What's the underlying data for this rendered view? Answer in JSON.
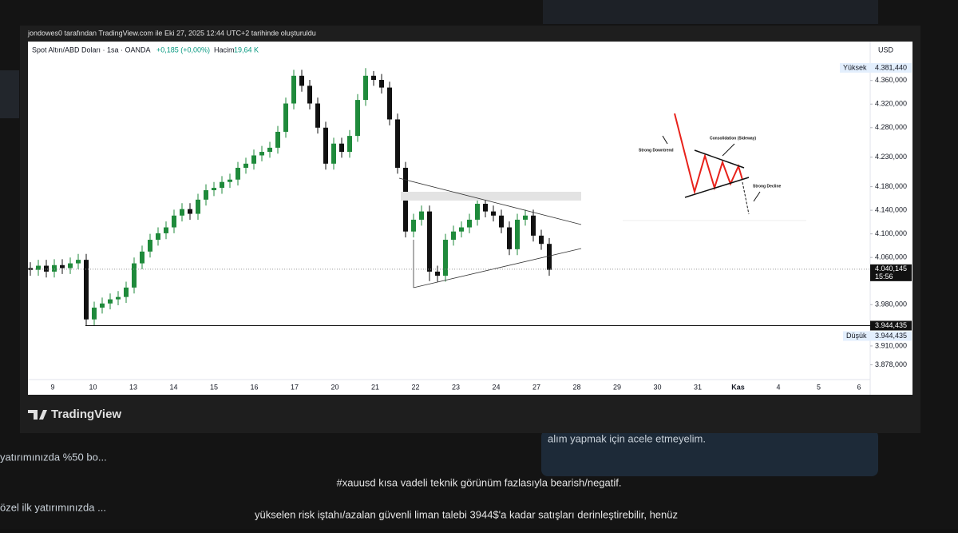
{
  "screenshot": {
    "header": "jondowes0 tarafından TradingView.com ile Eki 27, 2025 12:44 UTC+2 tarihinde oluşturuldu",
    "logo": "TradingView",
    "symbol": "Spot Altın/ABD Doları · 1sa · OANDA",
    "change": "+0,185 (+0,00%)",
    "volume_label": "Hacim",
    "volume": "19,64 K",
    "currency": "USD",
    "high_label": "Yüksek",
    "low_label": "Düşük",
    "countdown": "15:56",
    "annotations": [
      "Strong Downtrend",
      "Consolidation (Sideway)",
      "Strong Decline"
    ],
    "chat": {
      "message_1": "#xauusd kısa vadeli teknik görünüm fazlasıyla bearish/negatif.",
      "message_2": "yükselen risk iştahı/azalan güvenli liman talebi 3944$'a kadar satışları derinleştirebilir, henüz",
      "bubble": "alım yapmak için acele etmeyelim.",
      "side_1": "yatırımınızda %50 bo...",
      "side_2": "özel ilk yatırımınızda ..."
    }
  },
  "chart_data": {
    "type": "candlestick",
    "categories": [
      "9",
      "10",
      "13",
      "14",
      "15",
      "16",
      "17",
      "20",
      "21",
      "22",
      "23",
      "24",
      "27",
      "28",
      "29",
      "30",
      "31",
      "Kas",
      "4",
      "5",
      "6"
    ],
    "ylim": [
      3853,
      4426
    ],
    "yticks": [
      {
        "value": 4360,
        "label": "4.360,000"
      },
      {
        "value": 4320,
        "label": "4.320,000"
      },
      {
        "value": 4280,
        "label": "4.280,000"
      },
      {
        "value": 4230,
        "label": "4.230,000"
      },
      {
        "value": 4180,
        "label": "4.180,000"
      },
      {
        "value": 4140,
        "label": "4.140,000"
      },
      {
        "value": 4100,
        "label": "4.100,000"
      },
      {
        "value": 4060,
        "label": "4.060,000"
      },
      {
        "value": 3980,
        "label": "3.980,000"
      },
      {
        "value": 3910,
        "label": "3.910,000"
      },
      {
        "value": 3878,
        "label": "3.878,000"
      }
    ],
    "up_color": "#1f8a3b",
    "down_color": "#111111",
    "open": [
      4042,
      4039,
      4046,
      4036,
      4047,
      4042,
      4050,
      4056,
      3955,
      3975,
      3982,
      3989,
      3993,
      4009,
      4050,
      4070,
      4090,
      4101,
      4111,
      4131,
      4142,
      4134,
      4158,
      4174,
      4178,
      4188,
      4192,
      4212,
      4219,
      4233,
      4239,
      4246,
      4273,
      4321,
      4368,
      4351,
      4321,
      4280,
      4219,
      4253,
      4239,
      4266,
      4327,
      4368,
      4361,
      4348,
      4294,
      4212,
      4104,
      4124,
      4138,
      4036,
      4029,
      4090,
      4104,
      4111,
      4124,
      4151,
      4138,
      4131,
      4111,
      4074,
      4124,
      4131,
      4097,
      4083
    ],
    "high": [
      4052,
      4056,
      4056,
      4057,
      4057,
      4060,
      4066,
      4066,
      3985,
      3992,
      3999,
      4003,
      4019,
      4060,
      4080,
      4100,
      4111,
      4121,
      4141,
      4152,
      4152,
      4168,
      4184,
      4188,
      4198,
      4202,
      4222,
      4229,
      4243,
      4249,
      4256,
      4283,
      4331,
      4378,
      4378,
      4361,
      4331,
      4290,
      4263,
      4263,
      4276,
      4337,
      4381,
      4376,
      4371,
      4358,
      4304,
      4222,
      4134,
      4148,
      4148,
      4046,
      4100,
      4114,
      4121,
      4134,
      4161,
      4161,
      4148,
      4141,
      4121,
      4134,
      4141,
      4141,
      4107,
      4093
    ],
    "low": [
      4029,
      4029,
      4026,
      4026,
      4032,
      4032,
      4040,
      3944,
      3945,
      3965,
      3972,
      3979,
      3983,
      3999,
      4040,
      4060,
      4080,
      4091,
      4101,
      4121,
      4124,
      4124,
      4148,
      4164,
      4168,
      4178,
      4182,
      4202,
      4209,
      4223,
      4229,
      4236,
      4263,
      4311,
      4341,
      4311,
      4270,
      4209,
      4209,
      4229,
      4229,
      4256,
      4317,
      4351,
      4338,
      4284,
      4202,
      4094,
      4094,
      4114,
      4020,
      4019,
      4019,
      4080,
      4094,
      4101,
      4114,
      4128,
      4121,
      4101,
      4064,
      4064,
      4114,
      4087,
      4073,
      4029
    ],
    "close": [
      4039,
      4046,
      4036,
      4047,
      4042,
      4050,
      4056,
      3955,
      3975,
      3982,
      3989,
      3993,
      4009,
      4050,
      4070,
      4090,
      4101,
      4111,
      4131,
      4142,
      4134,
      4158,
      4174,
      4178,
      4188,
      4192,
      4212,
      4219,
      4233,
      4239,
      4246,
      4273,
      4321,
      4368,
      4351,
      4321,
      4280,
      4219,
      4253,
      4239,
      4266,
      4327,
      4368,
      4361,
      4348,
      4294,
      4212,
      4104,
      4124,
      4138,
      4036,
      4029,
      4090,
      4104,
      4111,
      4124,
      4151,
      4138,
      4131,
      4111,
      4074,
      4124,
      4131,
      4097,
      4083,
      4039
    ],
    "high_price": {
      "value": 4381.44,
      "label": "4.381,440"
    },
    "low_price": {
      "value": 3944.435,
      "label": "3.944,435"
    },
    "last_price": {
      "value": 4040.145,
      "label": "4.040,145"
    }
  }
}
